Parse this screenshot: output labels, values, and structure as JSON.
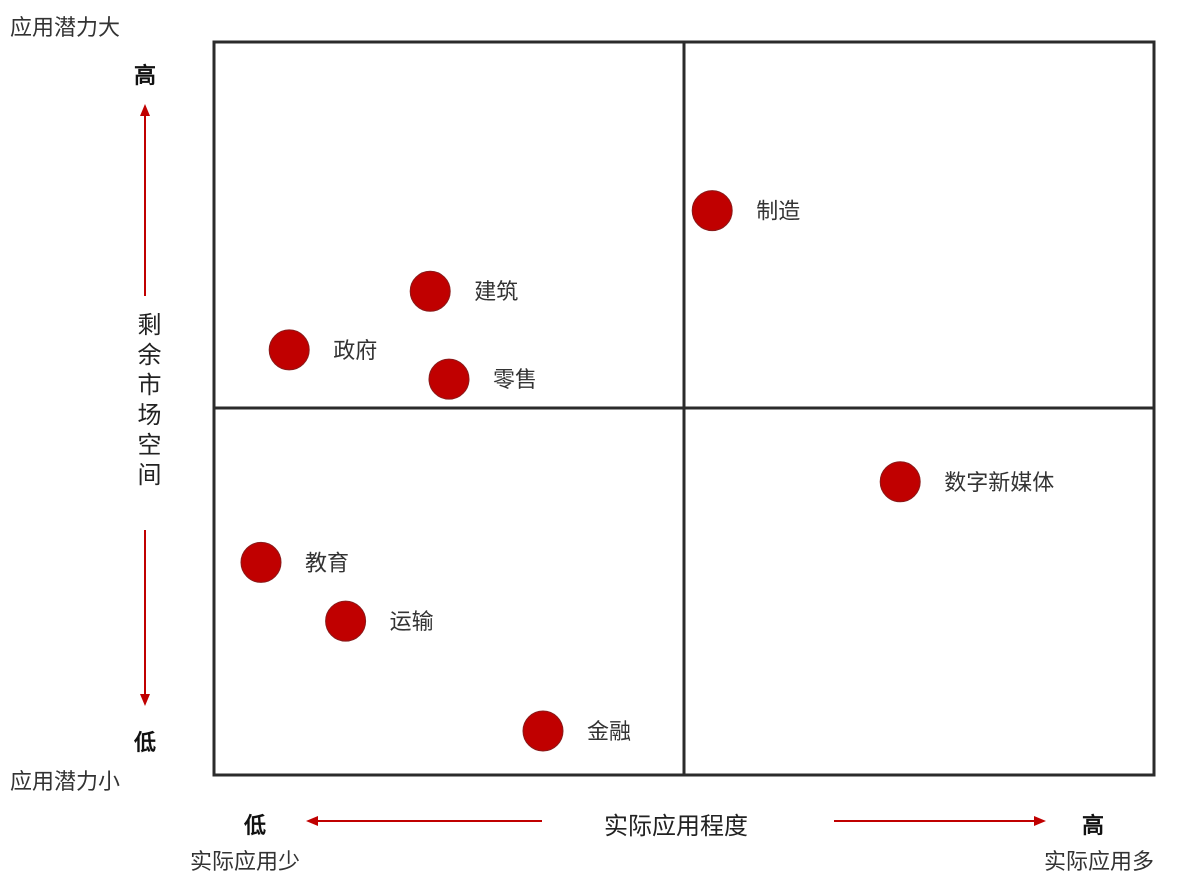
{
  "labels": {
    "top_left": "应用潜力大",
    "y_high": "高",
    "y_axis": "剩余市场空间",
    "y_low": "低",
    "bottom_left": "应用潜力小",
    "x_low": "低",
    "x_axis": "实际应用程度",
    "x_high": "高",
    "x_low_desc": "实际应用少",
    "x_high_desc": "实际应用多"
  },
  "colors": {
    "point": "#c00000",
    "arrow": "#c00000",
    "grid": "#2b2b2b"
  },
  "chart_data": {
    "type": "scatter",
    "xlabel": "实际应用程度",
    "ylabel": "剩余市场空间",
    "xlim": [
      0,
      100
    ],
    "ylim": [
      0,
      100
    ],
    "quadrant_split": {
      "x": 50,
      "y": 50
    },
    "points": [
      {
        "label": "制造",
        "x": 53,
        "y": 77
      },
      {
        "label": "建筑",
        "x": 23,
        "y": 66
      },
      {
        "label": "政府",
        "x": 8,
        "y": 58
      },
      {
        "label": "零售",
        "x": 25,
        "y": 54
      },
      {
        "label": "数字新媒体",
        "x": 73,
        "y": 40
      },
      {
        "label": "教育",
        "x": 5,
        "y": 29
      },
      {
        "label": "运输",
        "x": 14,
        "y": 21
      },
      {
        "label": "金融",
        "x": 35,
        "y": 6
      }
    ]
  }
}
